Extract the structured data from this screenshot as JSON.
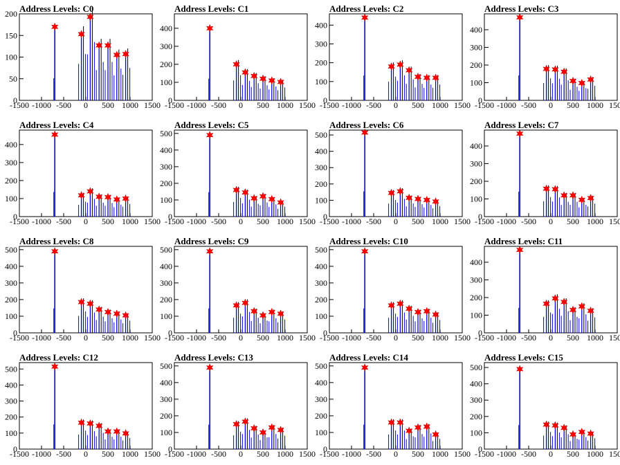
{
  "chart_data": [
    {
      "type": "histogram",
      "title": "Address Levels: C0",
      "xlim": [
        -1500,
        1500
      ],
      "ylim": [
        0,
        200
      ],
      "yticks": [
        0,
        50,
        100,
        150,
        200
      ],
      "xticks": [
        -1500,
        -1000,
        -500,
        0,
        500,
        1000,
        1500
      ],
      "peaks": [
        {
          "x": -700,
          "y": 170
        },
        {
          "x": -100,
          "y": 153
        },
        {
          "x": 100,
          "y": 193
        },
        {
          "x": 300,
          "y": 127
        },
        {
          "x": 500,
          "y": 127
        },
        {
          "x": 700,
          "y": 105
        },
        {
          "x": 900,
          "y": 107
        }
      ]
    },
    {
      "type": "histogram",
      "title": "Address Levels: C1",
      "xlim": [
        -1500,
        1500
      ],
      "ylim": [
        0,
        480
      ],
      "yticks": [
        0,
        100,
        200,
        300,
        400
      ],
      "xticks": [
        -1500,
        -1000,
        -500,
        0,
        500,
        1000,
        1500
      ],
      "peaks": [
        {
          "x": -700,
          "y": 400
        },
        {
          "x": -100,
          "y": 200
        },
        {
          "x": 100,
          "y": 155
        },
        {
          "x": 300,
          "y": 135
        },
        {
          "x": 500,
          "y": 120
        },
        {
          "x": 700,
          "y": 110
        },
        {
          "x": 900,
          "y": 102
        }
      ]
    },
    {
      "type": "histogram",
      "title": "Address Levels: C2",
      "xlim": [
        -1500,
        1500
      ],
      "ylim": [
        0,
        460
      ],
      "yticks": [
        0,
        100,
        200,
        300,
        400
      ],
      "xticks": [
        -1500,
        -1000,
        -500,
        0,
        500,
        1000,
        1500
      ],
      "peaks": [
        {
          "x": -700,
          "y": 440
        },
        {
          "x": -100,
          "y": 180
        },
        {
          "x": 100,
          "y": 190
        },
        {
          "x": 300,
          "y": 160
        },
        {
          "x": 500,
          "y": 125
        },
        {
          "x": 700,
          "y": 120
        },
        {
          "x": 900,
          "y": 120
        }
      ]
    },
    {
      "type": "histogram",
      "title": "Address Levels: C3",
      "xlim": [
        -1500,
        1500
      ],
      "ylim": [
        0,
        490
      ],
      "yticks": [
        0,
        100,
        200,
        300,
        400
      ],
      "xticks": [
        -1500,
        -1000,
        -500,
        0,
        500,
        1000,
        1500
      ],
      "peaks": [
        {
          "x": -700,
          "y": 470
        },
        {
          "x": -100,
          "y": 178
        },
        {
          "x": 100,
          "y": 175
        },
        {
          "x": 300,
          "y": 162
        },
        {
          "x": 500,
          "y": 110
        },
        {
          "x": 700,
          "y": 98
        },
        {
          "x": 900,
          "y": 118
        }
      ]
    },
    {
      "type": "histogram",
      "title": "Address Levels: C4",
      "xlim": [
        -1500,
        1500
      ],
      "ylim": [
        0,
        480
      ],
      "yticks": [
        0,
        100,
        200,
        300,
        400
      ],
      "xticks": [
        -1500,
        -1000,
        -500,
        0,
        500,
        1000,
        1500
      ],
      "peaks": [
        {
          "x": -700,
          "y": 455
        },
        {
          "x": -100,
          "y": 118
        },
        {
          "x": 100,
          "y": 140
        },
        {
          "x": 300,
          "y": 110
        },
        {
          "x": 500,
          "y": 108
        },
        {
          "x": 700,
          "y": 95
        },
        {
          "x": 900,
          "y": 100
        }
      ]
    },
    {
      "type": "histogram",
      "title": "Address Levels: C5",
      "xlim": [
        -1500,
        1500
      ],
      "ylim": [
        0,
        520
      ],
      "yticks": [
        0,
        100,
        200,
        300,
        400,
        500
      ],
      "xticks": [
        -1500,
        -1000,
        -500,
        0,
        500,
        1000,
        1500
      ],
      "peaks": [
        {
          "x": -700,
          "y": 490
        },
        {
          "x": -100,
          "y": 160
        },
        {
          "x": 100,
          "y": 145
        },
        {
          "x": 300,
          "y": 110
        },
        {
          "x": 500,
          "y": 122
        },
        {
          "x": 700,
          "y": 105
        },
        {
          "x": 900,
          "y": 85
        }
      ]
    },
    {
      "type": "histogram",
      "title": "Address Levels: C6",
      "xlim": [
        -1500,
        1500
      ],
      "ylim": [
        0,
        530
      ],
      "yticks": [
        0,
        100,
        200,
        300,
        400,
        500
      ],
      "xticks": [
        -1500,
        -1000,
        -500,
        0,
        500,
        1000,
        1500
      ],
      "peaks": [
        {
          "x": -700,
          "y": 515
        },
        {
          "x": -100,
          "y": 145
        },
        {
          "x": 100,
          "y": 155
        },
        {
          "x": 300,
          "y": 115
        },
        {
          "x": 500,
          "y": 108
        },
        {
          "x": 700,
          "y": 102
        },
        {
          "x": 900,
          "y": 92
        }
      ]
    },
    {
      "type": "histogram",
      "title": "Address Levels: C7",
      "xlim": [
        -1500,
        1500
      ],
      "ylim": [
        0,
        490
      ],
      "yticks": [
        0,
        100,
        200,
        300,
        400
      ],
      "xticks": [
        -1500,
        -1000,
        -500,
        0,
        500,
        1000,
        1500
      ],
      "peaks": [
        {
          "x": -700,
          "y": 470
        },
        {
          "x": -100,
          "y": 158
        },
        {
          "x": 100,
          "y": 155
        },
        {
          "x": 300,
          "y": 120
        },
        {
          "x": 500,
          "y": 120
        },
        {
          "x": 700,
          "y": 95
        },
        {
          "x": 900,
          "y": 105
        }
      ]
    },
    {
      "type": "histogram",
      "title": "Address Levels: C8",
      "xlim": [
        -1500,
        1500
      ],
      "ylim": [
        0,
        520
      ],
      "yticks": [
        0,
        100,
        200,
        300,
        400,
        500
      ],
      "xticks": [
        -1500,
        -1000,
        -500,
        0,
        500,
        1000,
        1500
      ],
      "peaks": [
        {
          "x": -700,
          "y": 490
        },
        {
          "x": -100,
          "y": 185
        },
        {
          "x": 100,
          "y": 175
        },
        {
          "x": 300,
          "y": 140
        },
        {
          "x": 500,
          "y": 125
        },
        {
          "x": 700,
          "y": 115
        },
        {
          "x": 900,
          "y": 105
        }
      ]
    },
    {
      "type": "histogram",
      "title": "Address Levels: C9",
      "xlim": [
        -1500,
        1500
      ],
      "ylim": [
        0,
        520
      ],
      "yticks": [
        0,
        100,
        200,
        300,
        400,
        500
      ],
      "xticks": [
        -1500,
        -1000,
        -500,
        0,
        500,
        1000,
        1500
      ],
      "peaks": [
        {
          "x": -700,
          "y": 490
        },
        {
          "x": -100,
          "y": 165
        },
        {
          "x": 100,
          "y": 180
        },
        {
          "x": 300,
          "y": 130
        },
        {
          "x": 500,
          "y": 105
        },
        {
          "x": 700,
          "y": 125
        },
        {
          "x": 900,
          "y": 115
        }
      ]
    },
    {
      "type": "histogram",
      "title": "Address Levels: C10",
      "xlim": [
        -1500,
        1500
      ],
      "ylim": [
        0,
        520
      ],
      "yticks": [
        0,
        100,
        200,
        300,
        400,
        500
      ],
      "xticks": [
        -1500,
        -1000,
        -500,
        0,
        500,
        1000,
        1500
      ],
      "peaks": [
        {
          "x": -700,
          "y": 490
        },
        {
          "x": -100,
          "y": 165
        },
        {
          "x": 100,
          "y": 175
        },
        {
          "x": 300,
          "y": 145
        },
        {
          "x": 500,
          "y": 125
        },
        {
          "x": 700,
          "y": 130
        },
        {
          "x": 900,
          "y": 110
        }
      ]
    },
    {
      "type": "histogram",
      "title": "Address Levels: C11",
      "xlim": [
        -1500,
        1500
      ],
      "ylim": [
        0,
        490
      ],
      "yticks": [
        0,
        100,
        200,
        300,
        400
      ],
      "xticks": [
        -1500,
        -1000,
        -500,
        0,
        500,
        1000,
        1500
      ],
      "peaks": [
        {
          "x": -700,
          "y": 470
        },
        {
          "x": -100,
          "y": 165
        },
        {
          "x": 100,
          "y": 195
        },
        {
          "x": 300,
          "y": 175
        },
        {
          "x": 500,
          "y": 130
        },
        {
          "x": 700,
          "y": 150
        },
        {
          "x": 900,
          "y": 125
        }
      ]
    },
    {
      "type": "histogram",
      "title": "Address Levels: C12",
      "xlim": [
        -1500,
        1500
      ],
      "ylim": [
        0,
        540
      ],
      "yticks": [
        0,
        100,
        200,
        300,
        400,
        500
      ],
      "xticks": [
        -1500,
        -1000,
        -500,
        0,
        500,
        1000,
        1500
      ],
      "peaks": [
        {
          "x": -700,
          "y": 515
        },
        {
          "x": -100,
          "y": 165
        },
        {
          "x": 100,
          "y": 160
        },
        {
          "x": 300,
          "y": 145
        },
        {
          "x": 500,
          "y": 110
        },
        {
          "x": 700,
          "y": 110
        },
        {
          "x": 900,
          "y": 98
        }
      ]
    },
    {
      "type": "histogram",
      "title": "Address Levels: C13",
      "xlim": [
        -1500,
        1500
      ],
      "ylim": [
        0,
        520
      ],
      "yticks": [
        0,
        100,
        200,
        300,
        400,
        500
      ],
      "xticks": [
        -1500,
        -1000,
        -500,
        0,
        500,
        1000,
        1500
      ],
      "peaks": [
        {
          "x": -700,
          "y": 490
        },
        {
          "x": -100,
          "y": 150
        },
        {
          "x": 100,
          "y": 165
        },
        {
          "x": 300,
          "y": 125
        },
        {
          "x": 500,
          "y": 100
        },
        {
          "x": 700,
          "y": 130
        },
        {
          "x": 900,
          "y": 115
        }
      ]
    },
    {
      "type": "histogram",
      "title": "Address Levels: C14",
      "xlim": [
        -1500,
        1500
      ],
      "ylim": [
        0,
        520
      ],
      "yticks": [
        0,
        100,
        200,
        300,
        400,
        500
      ],
      "xticks": [
        -1500,
        -1000,
        -500,
        0,
        500,
        1000,
        1500
      ],
      "peaks": [
        {
          "x": -700,
          "y": 490
        },
        {
          "x": -100,
          "y": 160
        },
        {
          "x": 100,
          "y": 160
        },
        {
          "x": 300,
          "y": 110
        },
        {
          "x": 500,
          "y": 130
        },
        {
          "x": 700,
          "y": 135
        },
        {
          "x": 900,
          "y": 88
        }
      ]
    },
    {
      "type": "histogram",
      "title": "Address Levels: C15",
      "xlim": [
        -1500,
        1500
      ],
      "ylim": [
        0,
        530
      ],
      "yticks": [
        0,
        100,
        200,
        300,
        400,
        500
      ],
      "xticks": [
        -1500,
        -1000,
        -500,
        0,
        500,
        1000,
        1500
      ],
      "peaks": [
        {
          "x": -700,
          "y": 490
        },
        {
          "x": -100,
          "y": 150
        },
        {
          "x": 100,
          "y": 145
        },
        {
          "x": 300,
          "y": 130
        },
        {
          "x": 500,
          "y": 90
        },
        {
          "x": 700,
          "y": 105
        },
        {
          "x": 900,
          "y": 95
        }
      ]
    }
  ],
  "colors": {
    "histogram": "#0000ee",
    "black_bar": "#000000",
    "marker": "#ff0000",
    "axes": "#000000"
  }
}
